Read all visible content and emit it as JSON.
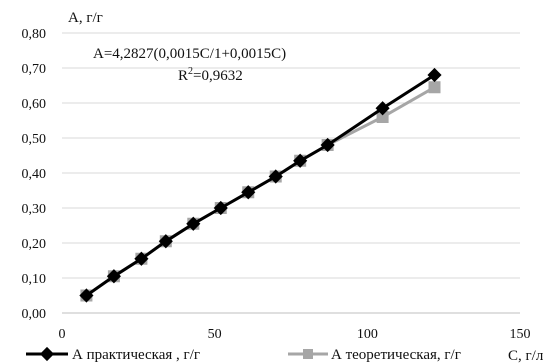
{
  "chart_data": {
    "type": "line",
    "ylabel": "A, г/г",
    "xlabel": "C, г/л",
    "xlim": [
      0,
      150
    ],
    "ylim": [
      0,
      0.8
    ],
    "x_ticks": [
      "0",
      "50",
      "100",
      "150"
    ],
    "y_ticks": [
      "0,00",
      "0,10",
      "0,20",
      "0,30",
      "0,40",
      "0,50",
      "0,60",
      "0,70",
      "0,80"
    ],
    "grid": "horizontal",
    "legend_position": "bottom",
    "annotation": {
      "equation": "A=4,2827(0,0015C/1+0,0015C)",
      "r2_prefix": "R",
      "r2_sup": "2",
      "r2_suffix": "=0,9632"
    },
    "series": [
      {
        "name": "А практическая , г/г",
        "color": "#000000",
        "marker": "diamond",
        "x": [
          8,
          17,
          26,
          34,
          43,
          52,
          61,
          70,
          78,
          87,
          105,
          122
        ],
        "y": [
          0.05,
          0.105,
          0.155,
          0.205,
          0.255,
          0.3,
          0.345,
          0.39,
          0.435,
          0.48,
          0.585,
          0.68
        ]
      },
      {
        "name": "А теоретическая, г/г",
        "color": "#a6a6a6",
        "marker": "square",
        "x": [
          8,
          17,
          26,
          34,
          43,
          52,
          61,
          70,
          78,
          87,
          105,
          122
        ],
        "y": [
          0.05,
          0.105,
          0.155,
          0.205,
          0.255,
          0.3,
          0.345,
          0.39,
          0.435,
          0.48,
          0.56,
          0.645
        ]
      }
    ]
  }
}
